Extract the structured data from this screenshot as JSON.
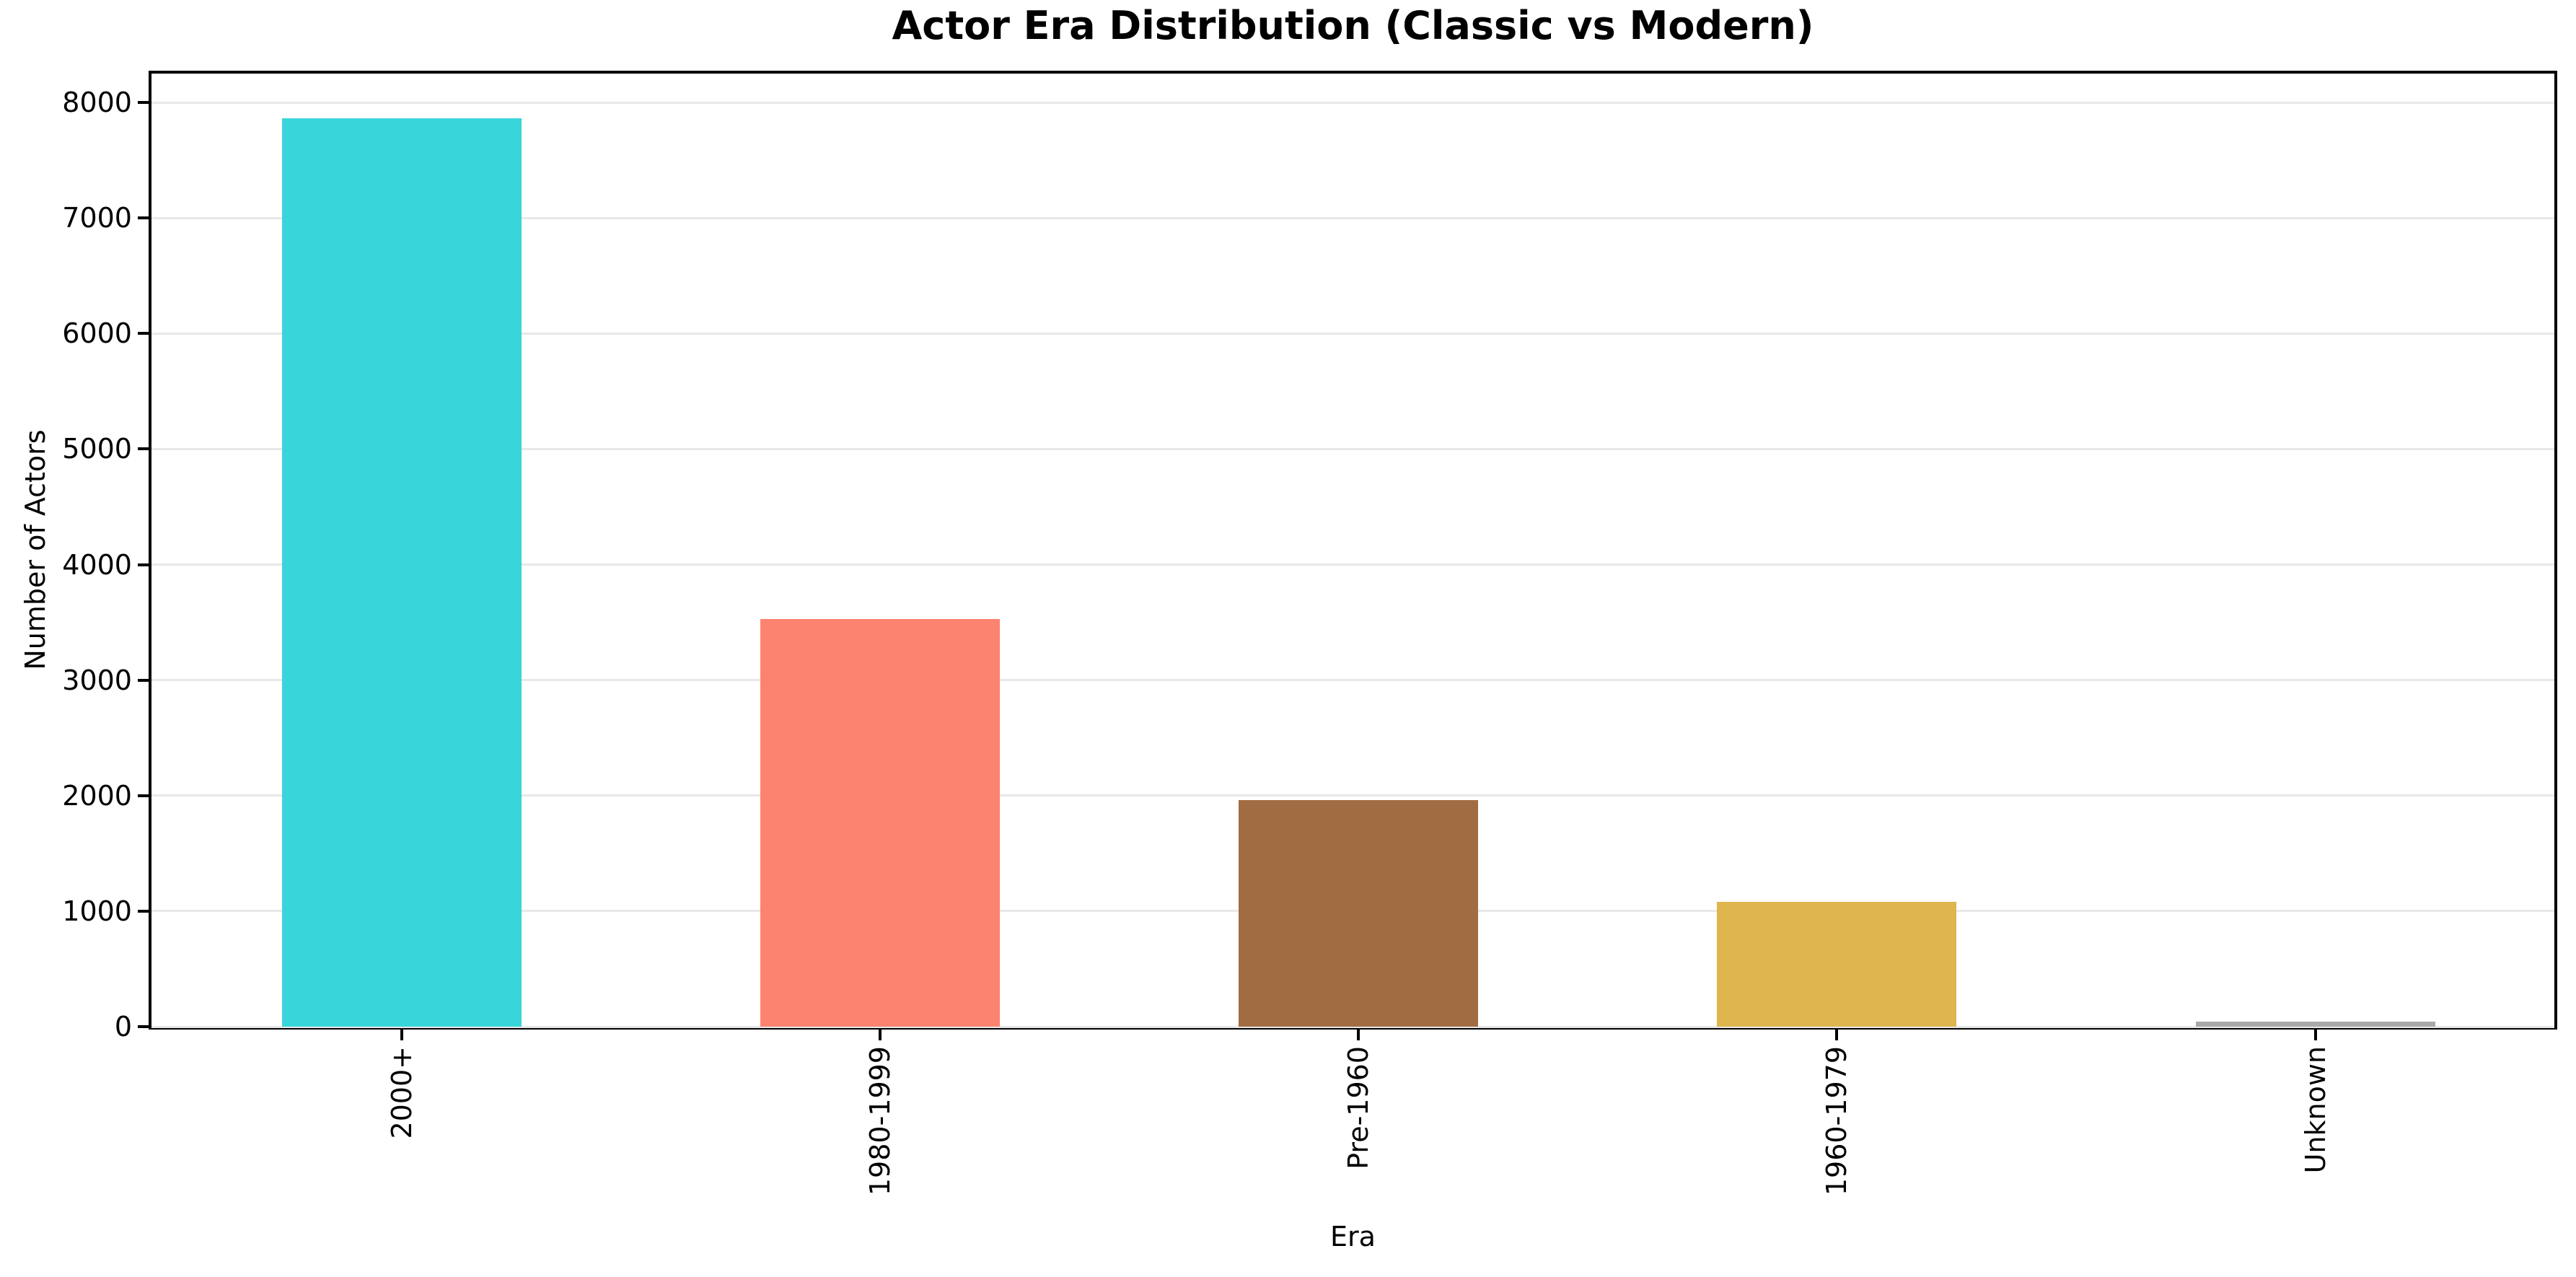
{
  "chart_data": {
    "type": "bar",
    "title": "Actor Era Distribution (Classic vs Modern)",
    "xlabel": "Era",
    "ylabel": "Number of Actors",
    "categories": [
      "2000+",
      "1980-1999",
      "Pre-1960",
      "1960-1979",
      "Unknown"
    ],
    "values": [
      7860,
      3530,
      1960,
      1080,
      45
    ],
    "bar_colors": [
      "#38d5da",
      "#fc8370",
      "#a26c42",
      "#dfb64d",
      "#a9a9a9"
    ],
    "ylim": [
      0,
      8250
    ],
    "yticks": [
      0,
      1000,
      2000,
      3000,
      4000,
      5000,
      6000,
      7000,
      8000
    ],
    "grid": "horizontal-light-gray",
    "legend": "none",
    "bar_width_fraction": 0.5,
    "x_tick_rotation_deg": 90
  }
}
